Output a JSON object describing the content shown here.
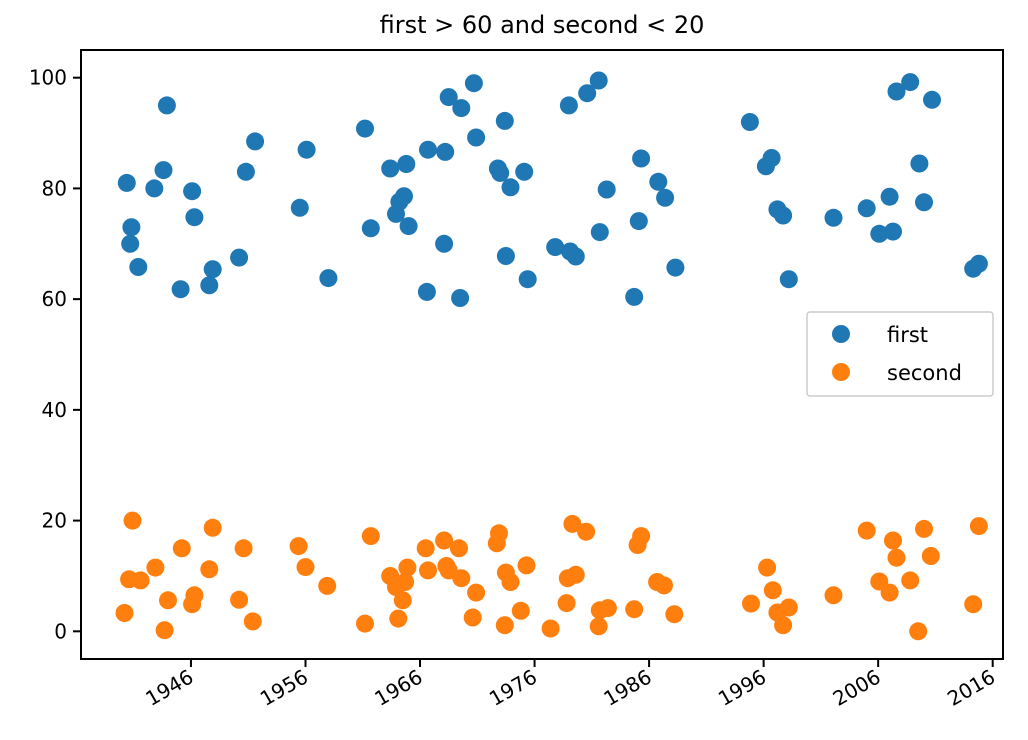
{
  "chart_data": {
    "type": "scatter",
    "title": "first > 60 and second < 20",
    "xlabel": "",
    "ylabel": "",
    "xlim": [
      1936.4,
      2016.9
    ],
    "ylim": [
      -5,
      105
    ],
    "x_ticks": [
      1946,
      1956,
      1966,
      1976,
      1986,
      1996,
      2006,
      2016
    ],
    "y_ticks": [
      0,
      20,
      40,
      60,
      80,
      100
    ],
    "grid": false,
    "legend_position": "center-right",
    "series": [
      {
        "name": "first",
        "color": "#1f77b4",
        "points": [
          [
            1940.4,
            81.0
          ],
          [
            1940.8,
            73.0
          ],
          [
            1940.7,
            70.0
          ],
          [
            1941.4,
            65.8
          ],
          [
            1942.8,
            80.0
          ],
          [
            1943.6,
            83.3
          ],
          [
            1943.9,
            95.0
          ],
          [
            1945.1,
            61.8
          ],
          [
            1946.1,
            79.5
          ],
          [
            1946.3,
            74.8
          ],
          [
            1947.6,
            62.5
          ],
          [
            1947.9,
            65.4
          ],
          [
            1950.2,
            67.5
          ],
          [
            1950.8,
            83.0
          ],
          [
            1951.6,
            88.5
          ],
          [
            1955.5,
            76.5
          ],
          [
            1956.1,
            87.0
          ],
          [
            1958.0,
            63.8
          ],
          [
            1961.2,
            90.8
          ],
          [
            1961.7,
            72.8
          ],
          [
            1963.4,
            83.6
          ],
          [
            1963.9,
            75.4
          ],
          [
            1964.2,
            77.6
          ],
          [
            1964.6,
            78.6
          ],
          [
            1964.8,
            84.4
          ],
          [
            1965.0,
            73.2
          ],
          [
            1966.7,
            87.0
          ],
          [
            1966.6,
            61.3
          ],
          [
            1968.2,
            86.6
          ],
          [
            1968.1,
            70.0
          ],
          [
            1968.5,
            96.5
          ],
          [
            1969.6,
            94.5
          ],
          [
            1969.5,
            60.2
          ],
          [
            1970.7,
            99.0
          ],
          [
            1970.9,
            89.2
          ],
          [
            1972.8,
            83.6
          ],
          [
            1973.0,
            82.8
          ],
          [
            1973.4,
            92.2
          ],
          [
            1973.5,
            67.8
          ],
          [
            1973.9,
            80.2
          ],
          [
            1975.1,
            83.0
          ],
          [
            1975.4,
            63.6
          ],
          [
            1977.8,
            69.4
          ],
          [
            1979.0,
            95.0
          ],
          [
            1979.1,
            68.6
          ],
          [
            1979.6,
            67.7
          ],
          [
            1980.6,
            97.2
          ],
          [
            1981.6,
            99.5
          ],
          [
            1981.7,
            72.1
          ],
          [
            1982.3,
            79.8
          ],
          [
            1984.7,
            60.4
          ],
          [
            1985.1,
            74.1
          ],
          [
            1985.3,
            85.4
          ],
          [
            1986.8,
            81.2
          ],
          [
            1987.4,
            78.3
          ],
          [
            1988.3,
            65.7
          ],
          [
            1994.8,
            92.0
          ],
          [
            1996.2,
            84.0
          ],
          [
            1996.7,
            85.5
          ],
          [
            1997.2,
            76.2
          ],
          [
            1997.7,
            75.1
          ],
          [
            1998.2,
            63.6
          ],
          [
            2002.1,
            74.7
          ],
          [
            2005.0,
            76.4
          ],
          [
            2006.1,
            71.8
          ],
          [
            2007.0,
            78.5
          ],
          [
            2007.3,
            72.2
          ],
          [
            2007.6,
            97.5
          ],
          [
            2008.8,
            99.2
          ],
          [
            2009.6,
            84.5
          ],
          [
            2010.0,
            77.5
          ],
          [
            2010.7,
            96.0
          ],
          [
            2014.3,
            65.5
          ],
          [
            2014.8,
            66.4
          ]
        ]
      },
      {
        "name": "second",
        "color": "#ff7f0e",
        "points": [
          [
            1940.2,
            3.3
          ],
          [
            1940.6,
            9.4
          ],
          [
            1940.9,
            20.0
          ],
          [
            1941.6,
            9.2
          ],
          [
            1942.9,
            11.5
          ],
          [
            1943.7,
            0.2
          ],
          [
            1944.0,
            5.6
          ],
          [
            1945.2,
            15.0
          ],
          [
            1946.1,
            4.9
          ],
          [
            1946.3,
            6.5
          ],
          [
            1947.6,
            11.2
          ],
          [
            1947.9,
            18.7
          ],
          [
            1950.2,
            5.7
          ],
          [
            1950.6,
            15.0
          ],
          [
            1951.4,
            1.8
          ],
          [
            1955.4,
            15.4
          ],
          [
            1956.0,
            11.6
          ],
          [
            1957.9,
            8.2
          ],
          [
            1961.2,
            1.4
          ],
          [
            1961.7,
            17.2
          ],
          [
            1963.4,
            10.0
          ],
          [
            1963.9,
            8.0
          ],
          [
            1964.1,
            2.3
          ],
          [
            1964.5,
            5.6
          ],
          [
            1964.7,
            8.9
          ],
          [
            1964.9,
            11.5
          ],
          [
            1966.5,
            15.0
          ],
          [
            1966.7,
            11.0
          ],
          [
            1968.1,
            16.4
          ],
          [
            1968.3,
            11.8
          ],
          [
            1968.5,
            11.0
          ],
          [
            1969.4,
            15.0
          ],
          [
            1969.6,
            9.6
          ],
          [
            1970.6,
            2.5
          ],
          [
            1970.9,
            7.0
          ],
          [
            1972.7,
            15.9
          ],
          [
            1972.9,
            17.7
          ],
          [
            1973.4,
            1.1
          ],
          [
            1973.5,
            10.6
          ],
          [
            1973.9,
            8.9
          ],
          [
            1974.8,
            3.7
          ],
          [
            1975.3,
            11.9
          ],
          [
            1977.4,
            0.5
          ],
          [
            1978.8,
            5.1
          ],
          [
            1978.9,
            9.6
          ],
          [
            1979.3,
            19.4
          ],
          [
            1979.6,
            10.2
          ],
          [
            1980.5,
            18.0
          ],
          [
            1981.6,
            0.9
          ],
          [
            1981.7,
            3.8
          ],
          [
            1982.4,
            4.2
          ],
          [
            1984.7,
            4.0
          ],
          [
            1985.0,
            15.6
          ],
          [
            1985.3,
            17.2
          ],
          [
            1986.7,
            8.9
          ],
          [
            1987.3,
            8.3
          ],
          [
            1988.2,
            3.1
          ],
          [
            1994.9,
            5.0
          ],
          [
            1996.3,
            11.5
          ],
          [
            1996.8,
            7.4
          ],
          [
            1997.2,
            3.4
          ],
          [
            1997.7,
            1.1
          ],
          [
            1998.2,
            4.3
          ],
          [
            2002.1,
            6.5
          ],
          [
            2005.0,
            18.2
          ],
          [
            2006.1,
            9.0
          ],
          [
            2007.0,
            7.0
          ],
          [
            2007.3,
            16.4
          ],
          [
            2007.6,
            13.3
          ],
          [
            2008.8,
            9.2
          ],
          [
            2009.5,
            0.0
          ],
          [
            2010.0,
            18.5
          ],
          [
            2010.6,
            13.6
          ],
          [
            2014.3,
            4.9
          ],
          [
            2014.8,
            19.0
          ]
        ]
      }
    ]
  }
}
